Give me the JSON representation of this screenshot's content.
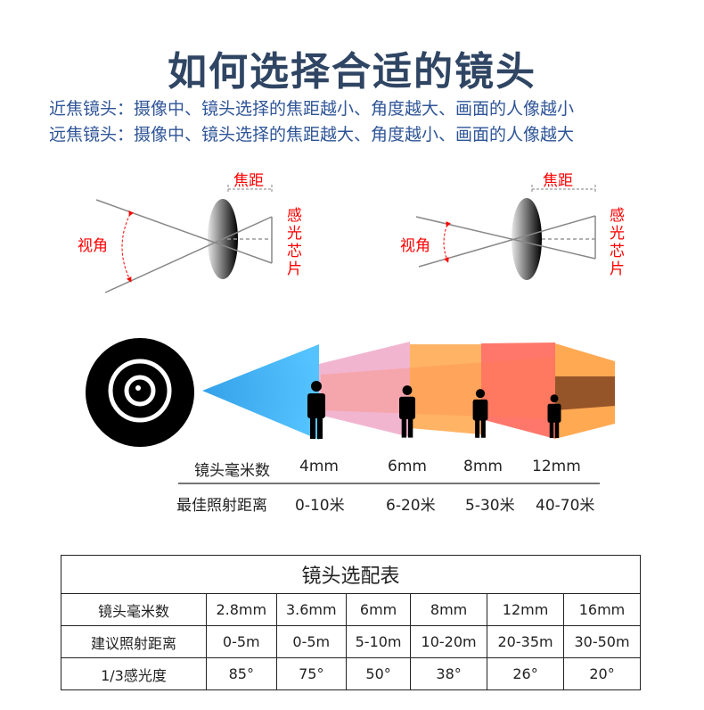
{
  "title": "如何选择合适的镜头",
  "subtitle_lines": [
    "近焦镜头：摄像中、镜头选择的焦距越小、角度越大、画面的人像越小",
    "远焦镜头：摄像中、镜头选择的焦距越大、角度越小、画面的人像越大"
  ],
  "diagrams": {
    "focal": "焦距",
    "angle": "视角",
    "sensor": "感光芯片"
  },
  "colors": {
    "title": "#2f4563",
    "subtitle": "#2f5597",
    "annotation": "#ff0000",
    "blue": "#3cb4f5",
    "pink": "#f0a8c8",
    "orange": "#ffa040",
    "red": "#ff4a3a"
  },
  "range": {
    "row1_label": "镜头毫米数",
    "row2_label": "最佳照射距离",
    "mm": [
      "4mm",
      "6mm",
      "8mm",
      "12mm"
    ],
    "distance": [
      "0-10米",
      "6-20米",
      "5-30米",
      "40-70米"
    ]
  },
  "table": {
    "title": "镜头选配表",
    "rows": [
      {
        "label": "镜头毫米数",
        "values": [
          "2.8mm",
          "3.6mm",
          "6mm",
          "8mm",
          "12mm",
          "16mm"
        ]
      },
      {
        "label": "建议照射距离",
        "values": [
          "0-5m",
          "0-5m",
          "5-10m",
          "10-20m",
          "20-35m",
          "30-50m"
        ]
      },
      {
        "label": "1/3感光度",
        "values": [
          "85°",
          "75°",
          "50°",
          "38°",
          "26°",
          "20°"
        ]
      }
    ]
  }
}
